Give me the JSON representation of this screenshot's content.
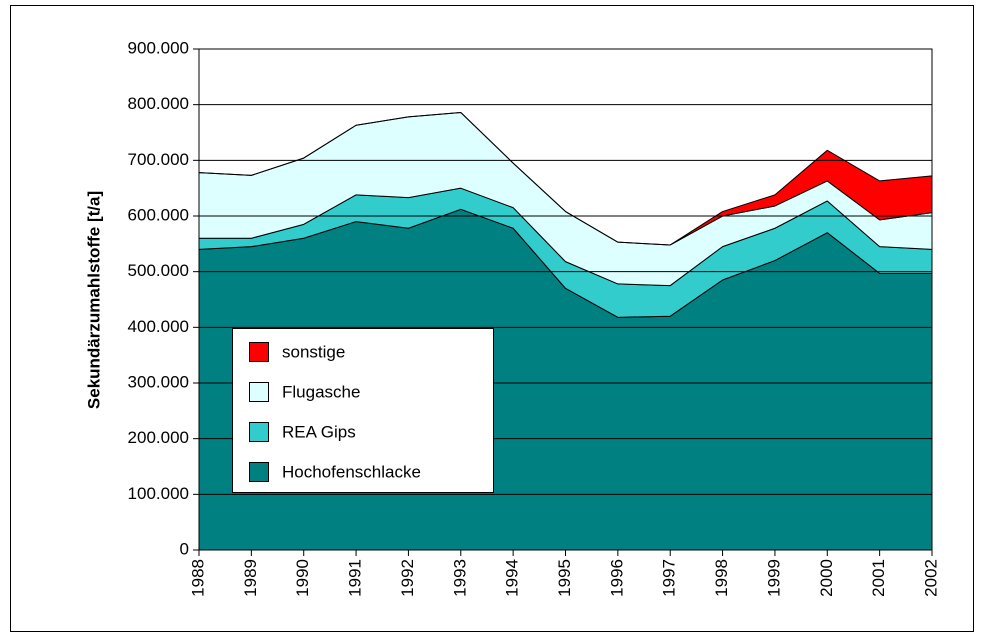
{
  "chart_data": {
    "type": "stacked_area",
    "y_label": "Sekundärzumahlstoffe [t/a]",
    "categories": [
      "1988",
      "1989",
      "1990",
      "1991",
      "1992",
      "1993",
      "1994",
      "1995",
      "1996",
      "1997",
      "1998",
      "1999",
      "2000",
      "2001",
      "2002"
    ],
    "series": [
      {
        "name": "Hochofenschlacke",
        "color": "#008080",
        "values": [
          540000,
          545000,
          560000,
          590000,
          578000,
          612000,
          578000,
          470000,
          418000,
          420000,
          485000,
          520000,
          570000,
          497000,
          497000
        ]
      },
      {
        "name": "REA Gips",
        "color": "#33cccc",
        "values": [
          20000,
          15000,
          25000,
          48000,
          55000,
          38000,
          37000,
          48000,
          60000,
          55000,
          60000,
          58000,
          57000,
          48000,
          43000
        ]
      },
      {
        "name": "Flugasche",
        "color": "#ddffff",
        "values": [
          118000,
          113000,
          119000,
          125000,
          145000,
          136000,
          80000,
          90000,
          75000,
          73000,
          55000,
          40000,
          36000,
          48000,
          66000
        ]
      },
      {
        "name": "sonstige",
        "color": "#ff0000",
        "values": [
          0,
          0,
          0,
          0,
          0,
          0,
          0,
          0,
          0,
          0,
          8000,
          20000,
          55000,
          70000,
          66000
        ]
      }
    ],
    "ylim": [
      0,
      900000
    ],
    "yticks": [
      {
        "value": 0,
        "label": "0"
      },
      {
        "value": 100000,
        "label": "100.000"
      },
      {
        "value": 200000,
        "label": "200.000"
      },
      {
        "value": 300000,
        "label": "300.000"
      },
      {
        "value": 400000,
        "label": "400.000"
      },
      {
        "value": 500000,
        "label": "500.000"
      },
      {
        "value": 600000,
        "label": "600.000"
      },
      {
        "value": 700000,
        "label": "700.000"
      },
      {
        "value": 800000,
        "label": "800.000"
      },
      {
        "value": 900000,
        "label": "900.000"
      }
    ],
    "grid": true
  }
}
